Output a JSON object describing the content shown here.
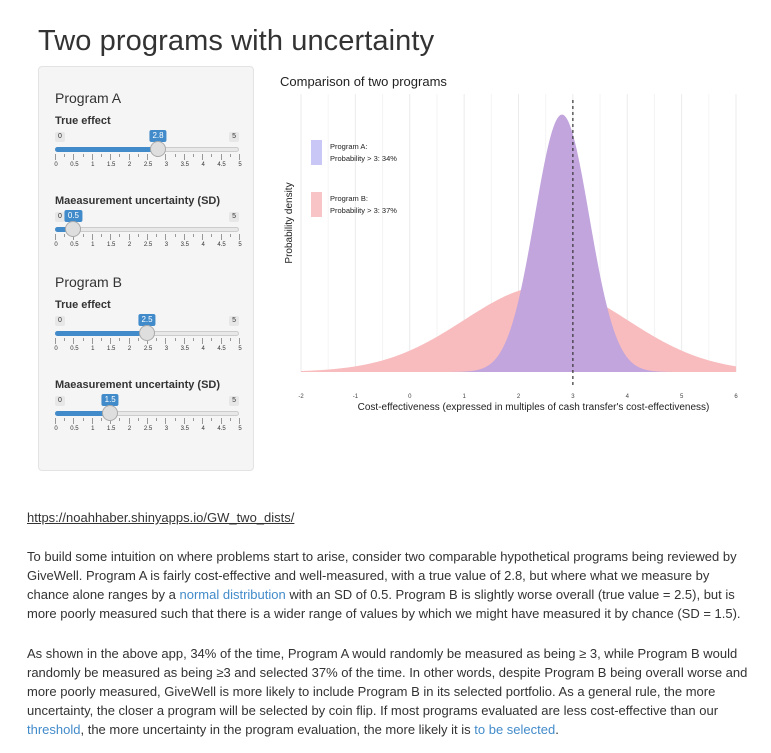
{
  "page": {
    "title": "Two programs with uncertainty"
  },
  "sidebar": {
    "program_a": {
      "title": "Program A",
      "true_effect": {
        "label": "True effect",
        "min": 0,
        "max": 5,
        "value": 2.8,
        "min_text": "0",
        "max_text": "5",
        "value_text": "2.8"
      },
      "uncertainty": {
        "label": "Maeasurement uncertainty (SD)",
        "min": 0,
        "max": 5,
        "value": 0.5,
        "min_text": "0",
        "max_text": "5",
        "value_text": "0.5"
      }
    },
    "program_b": {
      "title": "Program B",
      "true_effect": {
        "label": "True effect",
        "min": 0,
        "max": 5,
        "value": 2.5,
        "min_text": "0",
        "max_text": "5",
        "value_text": "2.5"
      },
      "uncertainty": {
        "label": "Maeasurement uncertainty (SD)",
        "min": 0,
        "max": 5,
        "value": 1.5,
        "min_text": "0",
        "max_text": "5",
        "value_text": "1.5"
      }
    },
    "tick_labels": [
      "0",
      "0.5",
      "1",
      "1.5",
      "2",
      "2.5",
      "3",
      "3.5",
      "4",
      "4.5",
      "5"
    ]
  },
  "chart_data": {
    "type": "area",
    "title": "Comparison of two programs",
    "xlabel": "Cost-effectiveness (expressed in multiples of cash transfer's cost-effectiveness)",
    "ylabel": "Probability density",
    "xlim": [
      -2,
      6
    ],
    "x_ticks": [
      "-2",
      "-1",
      "0",
      "1",
      "2",
      "3",
      "4",
      "5",
      "6"
    ],
    "threshold": 3,
    "grid": true,
    "legend_position": "top-left",
    "series": [
      {
        "name": "Program B:",
        "detail": "Probability > 3: 37%",
        "mean": 2.5,
        "sd": 1.5,
        "color": "#f8bcbe"
      },
      {
        "name": "Program A:",
        "detail": "Probability > 3: 34%",
        "mean": 2.8,
        "sd": 0.5,
        "color": "#c1a5dc"
      }
    ],
    "legend_swatches": {
      "program_a": "#c9c7f5",
      "program_b": "#f8c4c6"
    }
  },
  "content": {
    "url_text": "https://noahhaber.shinyapps.io/GW_two_dists/",
    "p1_part1": "To build some intuition on where problems start to arise, consider two comparable hypothetical programs being reviewed by GiveWell. Program A is fairly cost-effective and well-measured, with a true value of 2.8, but where what we measure by chance alone ranges by a ",
    "p1_link": "normal distribution",
    "p1_part2": " with an SD of 0.5. Program B is slightly worse overall (true value = 2.5), but is more poorly measured such that there is a wider range of values by which we might have measured it by chance (SD = 1.5).",
    "p2_part1": "As shown in the above app, 34% of the time, Program A would randomly be measured as being ≥ 3, while Program B would randomly be measured as being ≥3 and selected 37% of the time. In other words, despite Program B being overall worse and more poorly measured, GiveWell is more likely to include Program B in its selected portfolio. As a general rule, the more uncertainty, the closer a program will be selected by coin flip. If most programs evaluated are less cost-effective than our ",
    "p2_link1": "threshold",
    "p2_part2": ", the more uncertainty in the program evaluation, the more likely it is ",
    "p2_link2": "to be selected",
    "p2_part3": "."
  }
}
